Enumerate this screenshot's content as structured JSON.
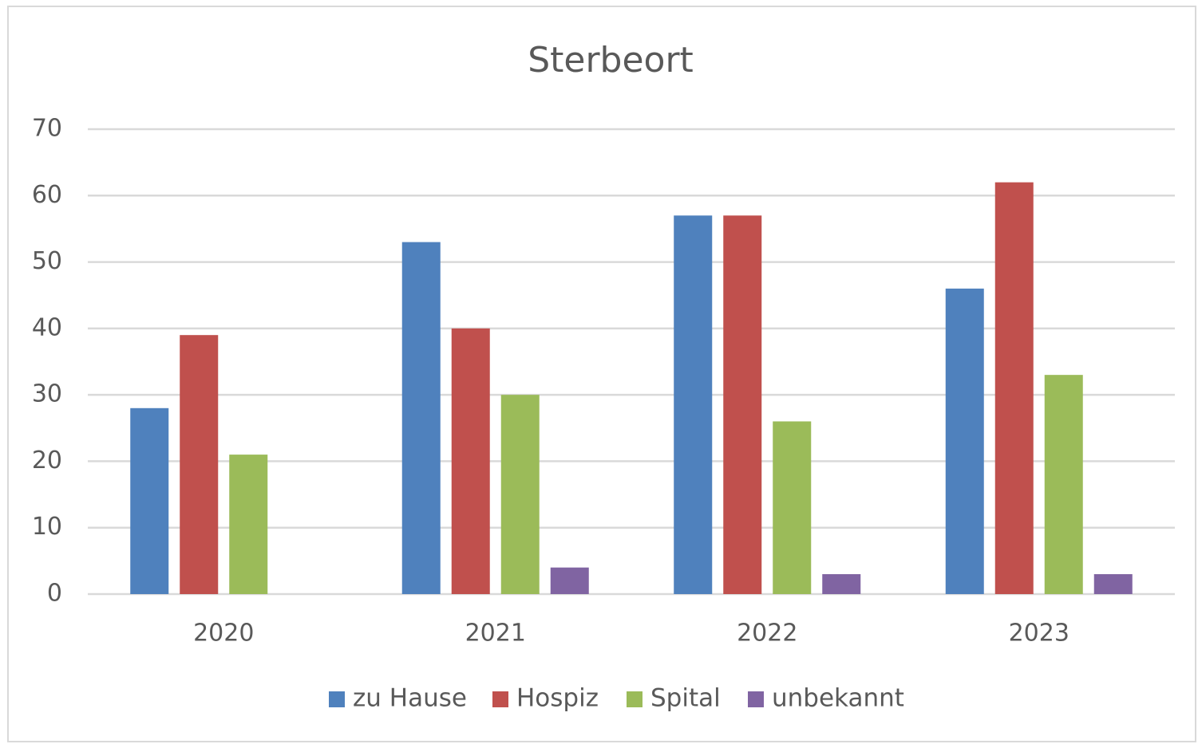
{
  "chart_data": {
    "type": "bar",
    "title": "Sterbeort",
    "categories": [
      "2020",
      "2021",
      "2022",
      "2023"
    ],
    "series": [
      {
        "name": "zu Hause",
        "color": "#4f81bd",
        "values": [
          28,
          53,
          57,
          46
        ]
      },
      {
        "name": "Hospiz",
        "color": "#c0504d",
        "values": [
          39,
          40,
          57,
          62
        ]
      },
      {
        "name": "Spital",
        "color": "#9bbb59",
        "values": [
          21,
          30,
          26,
          33
        ]
      },
      {
        "name": "unbekannt",
        "color": "#8064a2",
        "values": [
          0,
          4,
          3,
          3
        ]
      }
    ],
    "ylim": [
      0,
      70
    ],
    "yticks": [
      0,
      10,
      20,
      30,
      40,
      50,
      60,
      70
    ],
    "grid": true,
    "legend": "bottom"
  }
}
